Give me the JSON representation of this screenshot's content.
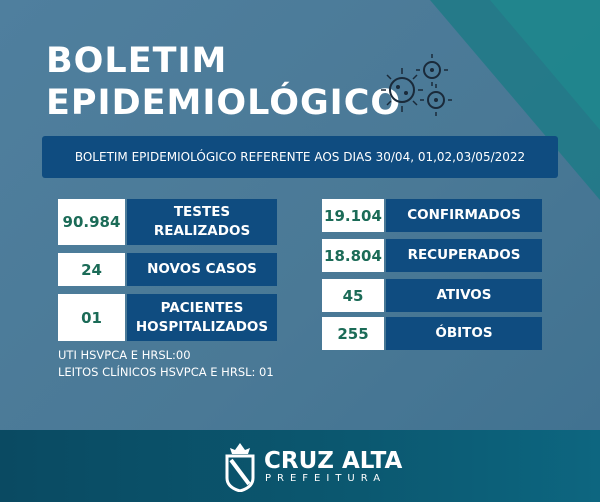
{
  "title": {
    "line1": "BOLETIM",
    "line2": "EPIDEMIOLÓGICO"
  },
  "banner": "BOLETIM EPIDEMIOLÓGICO REFERENTE AOS DIAS 30/04, 01,02,03/05/2022",
  "left": [
    {
      "value": "90.984",
      "label": "TESTES REALIZADOS"
    },
    {
      "value": "24",
      "label": "NOVOS CASOS"
    },
    {
      "value": "01",
      "label": "PACIENTES HOSPITALIZADOS"
    }
  ],
  "right": [
    {
      "value": "19.104",
      "label": "CONFIRMADOS"
    },
    {
      "value": "18.804",
      "label": "RECUPERADOS"
    },
    {
      "value": "45",
      "label": "ATIVOS"
    },
    {
      "value": "255",
      "label": "ÓBITOS"
    }
  ],
  "notes": [
    "UTI HSVPCA E HRSL:00",
    "LEITOS CLÍNICOS HSVPCA E HRSL: 01"
  ],
  "footer": {
    "name": "CRUZ ALTA",
    "subtitle": "PREFEITURA"
  },
  "colors": {
    "label_bg": "#0f4c80",
    "value_text": "#1b6b57",
    "footer": "#0b5870"
  }
}
